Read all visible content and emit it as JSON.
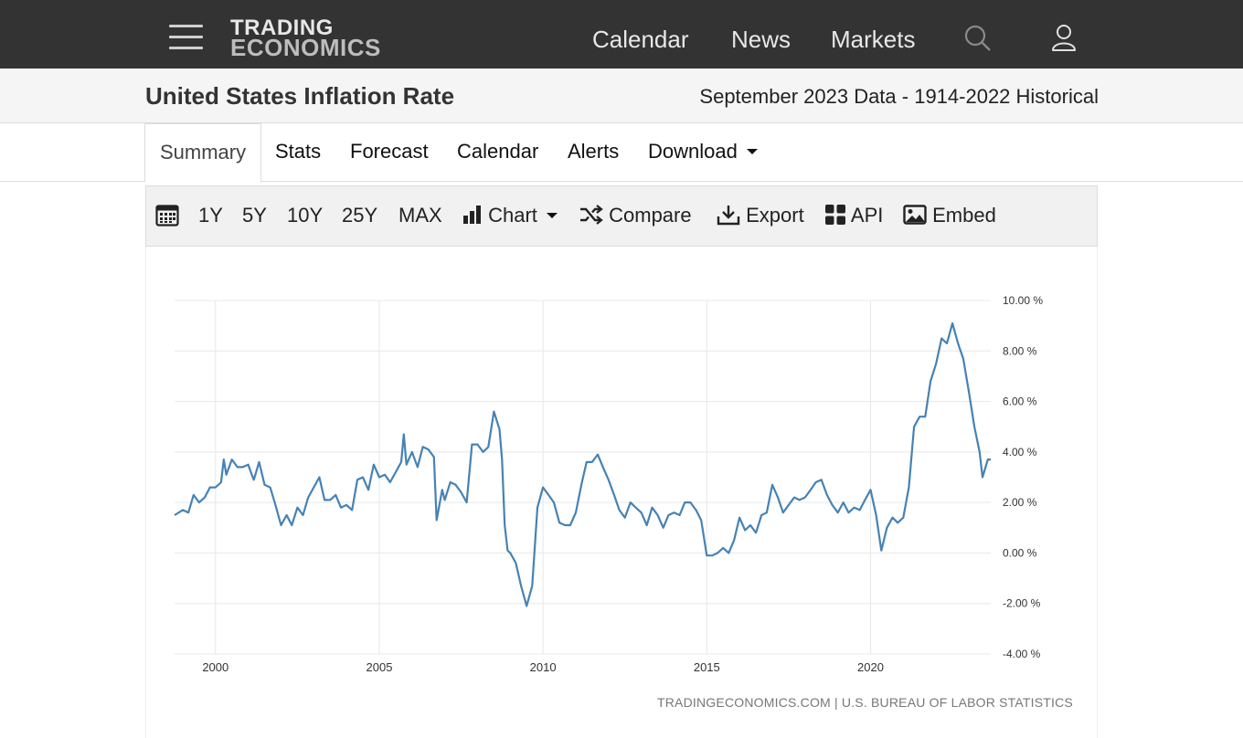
{
  "nav": {
    "logo_line1": "TRADING",
    "logo_line2": "ECONOMICS",
    "links": [
      "Calendar",
      "News",
      "Markets"
    ]
  },
  "page": {
    "title": "United States Inflation Rate",
    "subtitle": "September 2023 Data - 1914-2022 Historical"
  },
  "tabs": [
    "Summary",
    "Stats",
    "Forecast",
    "Calendar",
    "Alerts",
    "Download"
  ],
  "toolbar": {
    "ranges": [
      "1Y",
      "5Y",
      "10Y",
      "25Y",
      "MAX"
    ],
    "chart_label": "Chart",
    "compare_label": "Compare",
    "export_label": "Export",
    "api_label": "API",
    "embed_label": "Embed"
  },
  "source": "TRADINGECONOMICS.COM | U.S. BUREAU OF LABOR STATISTICS",
  "colors": {
    "line": "#4682b4",
    "nav_bg": "#333333",
    "grid": "#e8e8e8"
  },
  "chart_data": {
    "type": "line",
    "series": [
      {
        "values": [
          [
            1998.75,
            1.5
          ],
          [
            1999.0,
            1.7
          ],
          [
            1999.17,
            1.6
          ],
          [
            1999.33,
            2.3
          ],
          [
            1999.5,
            2.0
          ],
          [
            1999.67,
            2.2
          ],
          [
            1999.83,
            2.6
          ],
          [
            2000.0,
            2.6
          ],
          [
            2000.17,
            2.8
          ],
          [
            2000.25,
            3.7
          ],
          [
            2000.33,
            3.1
          ],
          [
            2000.5,
            3.7
          ],
          [
            2000.67,
            3.4
          ],
          [
            2000.83,
            3.4
          ],
          [
            2001.0,
            3.5
          ],
          [
            2001.08,
            3.2
          ],
          [
            2001.17,
            2.9
          ],
          [
            2001.33,
            3.6
          ],
          [
            2001.5,
            2.7
          ],
          [
            2001.67,
            2.6
          ],
          [
            2001.83,
            1.9
          ],
          [
            2002.0,
            1.1
          ],
          [
            2002.17,
            1.5
          ],
          [
            2002.33,
            1.1
          ],
          [
            2002.5,
            1.8
          ],
          [
            2002.67,
            1.5
          ],
          [
            2002.83,
            2.2
          ],
          [
            2003.0,
            2.6
          ],
          [
            2003.17,
            3.0
          ],
          [
            2003.33,
            2.1
          ],
          [
            2003.5,
            2.1
          ],
          [
            2003.67,
            2.3
          ],
          [
            2003.83,
            1.8
          ],
          [
            2004.0,
            1.9
          ],
          [
            2004.17,
            1.7
          ],
          [
            2004.33,
            2.9
          ],
          [
            2004.5,
            3.0
          ],
          [
            2004.67,
            2.5
          ],
          [
            2004.83,
            3.5
          ],
          [
            2005.0,
            3.0
          ],
          [
            2005.17,
            3.1
          ],
          [
            2005.33,
            2.8
          ],
          [
            2005.5,
            3.2
          ],
          [
            2005.67,
            3.6
          ],
          [
            2005.75,
            4.7
          ],
          [
            2005.83,
            3.5
          ],
          [
            2006.0,
            4.0
          ],
          [
            2006.17,
            3.4
          ],
          [
            2006.33,
            4.2
          ],
          [
            2006.5,
            4.1
          ],
          [
            2006.67,
            3.8
          ],
          [
            2006.75,
            1.3
          ],
          [
            2006.92,
            2.5
          ],
          [
            2007.0,
            2.1
          ],
          [
            2007.17,
            2.8
          ],
          [
            2007.33,
            2.7
          ],
          [
            2007.5,
            2.4
          ],
          [
            2007.67,
            2.0
          ],
          [
            2007.83,
            4.3
          ],
          [
            2008.0,
            4.3
          ],
          [
            2008.17,
            4.0
          ],
          [
            2008.33,
            4.2
          ],
          [
            2008.5,
            5.6
          ],
          [
            2008.67,
            4.9
          ],
          [
            2008.75,
            3.7
          ],
          [
            2008.83,
            1.1
          ],
          [
            2008.92,
            0.1
          ],
          [
            2009.0,
            0.0
          ],
          [
            2009.17,
            -0.4
          ],
          [
            2009.33,
            -1.3
          ],
          [
            2009.5,
            -2.1
          ],
          [
            2009.67,
            -1.3
          ],
          [
            2009.83,
            1.8
          ],
          [
            2010.0,
            2.6
          ],
          [
            2010.17,
            2.3
          ],
          [
            2010.33,
            2.0
          ],
          [
            2010.5,
            1.2
          ],
          [
            2010.67,
            1.1
          ],
          [
            2010.83,
            1.1
          ],
          [
            2011.0,
            1.6
          ],
          [
            2011.17,
            2.7
          ],
          [
            2011.33,
            3.6
          ],
          [
            2011.5,
            3.6
          ],
          [
            2011.67,
            3.9
          ],
          [
            2011.83,
            3.4
          ],
          [
            2012.0,
            2.9
          ],
          [
            2012.17,
            2.3
          ],
          [
            2012.33,
            1.7
          ],
          [
            2012.5,
            1.4
          ],
          [
            2012.67,
            2.0
          ],
          [
            2012.83,
            1.8
          ],
          [
            2013.0,
            1.6
          ],
          [
            2013.17,
            1.1
          ],
          [
            2013.33,
            1.8
          ],
          [
            2013.5,
            1.5
          ],
          [
            2013.67,
            1.0
          ],
          [
            2013.83,
            1.5
          ],
          [
            2014.0,
            1.6
          ],
          [
            2014.17,
            1.5
          ],
          [
            2014.33,
            2.0
          ],
          [
            2014.5,
            2.0
          ],
          [
            2014.67,
            1.7
          ],
          [
            2014.83,
            1.3
          ],
          [
            2015.0,
            -0.1
          ],
          [
            2015.17,
            -0.1
          ],
          [
            2015.33,
            0.0
          ],
          [
            2015.5,
            0.2
          ],
          [
            2015.67,
            0.0
          ],
          [
            2015.83,
            0.5
          ],
          [
            2016.0,
            1.4
          ],
          [
            2016.17,
            0.9
          ],
          [
            2016.33,
            1.1
          ],
          [
            2016.5,
            0.8
          ],
          [
            2016.67,
            1.5
          ],
          [
            2016.83,
            1.6
          ],
          [
            2017.0,
            2.7
          ],
          [
            2017.17,
            2.2
          ],
          [
            2017.33,
            1.6
          ],
          [
            2017.5,
            1.9
          ],
          [
            2017.67,
            2.2
          ],
          [
            2017.83,
            2.1
          ],
          [
            2018.0,
            2.2
          ],
          [
            2018.17,
            2.5
          ],
          [
            2018.33,
            2.8
          ],
          [
            2018.5,
            2.9
          ],
          [
            2018.67,
            2.3
          ],
          [
            2018.83,
            1.9
          ],
          [
            2019.0,
            1.6
          ],
          [
            2019.17,
            2.0
          ],
          [
            2019.33,
            1.6
          ],
          [
            2019.5,
            1.8
          ],
          [
            2019.67,
            1.7
          ],
          [
            2019.83,
            2.1
          ],
          [
            2020.0,
            2.5
          ],
          [
            2020.17,
            1.5
          ],
          [
            2020.33,
            0.1
          ],
          [
            2020.5,
            1.0
          ],
          [
            2020.67,
            1.4
          ],
          [
            2020.83,
            1.2
          ],
          [
            2021.0,
            1.4
          ],
          [
            2021.17,
            2.6
          ],
          [
            2021.33,
            5.0
          ],
          [
            2021.5,
            5.4
          ],
          [
            2021.67,
            5.4
          ],
          [
            2021.83,
            6.8
          ],
          [
            2022.0,
            7.5
          ],
          [
            2022.17,
            8.5
          ],
          [
            2022.33,
            8.3
          ],
          [
            2022.5,
            9.1
          ],
          [
            2022.67,
            8.3
          ],
          [
            2022.83,
            7.7
          ],
          [
            2023.0,
            6.4
          ],
          [
            2023.17,
            5.0
          ],
          [
            2023.33,
            4.0
          ],
          [
            2023.42,
            3.0
          ],
          [
            2023.58,
            3.7
          ],
          [
            2023.67,
            3.7
          ]
        ]
      }
    ],
    "xticks": [
      2000,
      2005,
      2010,
      2015,
      2020
    ],
    "yticks": [
      "10.00 %",
      "8.00 %",
      "6.00 %",
      "4.00 %",
      "2.00 %",
      "0.00 %",
      "-2.00 %",
      "-4.00 %"
    ],
    "xlim": [
      1998.75,
      2023.67
    ],
    "ylim": [
      -4,
      10
    ],
    "grid": true,
    "y_axis_side": "right"
  }
}
